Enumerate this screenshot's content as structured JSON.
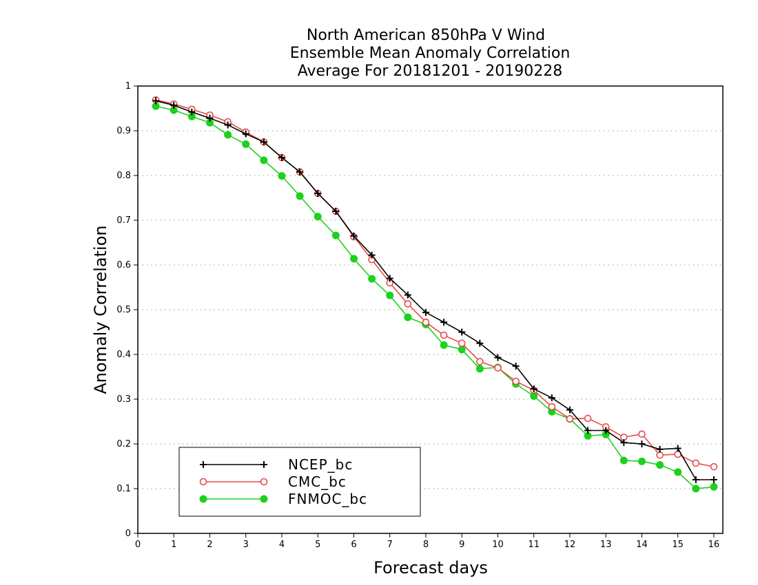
{
  "chart_data": {
    "type": "line",
    "title": [
      "North American 850hPa V Wind",
      "Ensemble Mean Anomaly Correlation",
      "Average For 20181201 - 20190228"
    ],
    "xlabel": "Forecast days",
    "ylabel": "Anomaly Correlation",
    "xlim": [
      0,
      16.25
    ],
    "ylim": [
      0,
      1
    ],
    "xticks": [
      0,
      1,
      2,
      3,
      4,
      5,
      6,
      7,
      8,
      9,
      10,
      11,
      12,
      13,
      14,
      15,
      16
    ],
    "xtick_labels": [
      "0",
      "1",
      "2",
      "3",
      "4",
      "5",
      "6",
      "7",
      "8",
      "9",
      "10",
      "11",
      "12",
      "13",
      "14",
      "15",
      "16"
    ],
    "yticks": [
      0,
      0.1,
      0.2,
      0.3,
      0.4,
      0.5,
      0.6,
      0.7,
      0.8,
      0.9,
      1
    ],
    "ytick_labels": [
      "0",
      "0.1",
      "0.2",
      "0.3",
      "0.4",
      "0.5",
      "0.6",
      "0.7",
      "0.8",
      "0.9",
      "1"
    ],
    "grid": "horizontal-dotted",
    "legend_position": "bottom-left",
    "x": [
      0.5,
      1,
      1.5,
      2,
      2.5,
      3,
      3.5,
      4,
      4.5,
      5,
      5.5,
      6,
      6.5,
      7,
      7.5,
      8,
      8.5,
      9,
      9.5,
      10,
      10.5,
      11,
      11.5,
      12,
      12.5,
      13,
      13.5,
      14,
      14.5,
      15,
      15.5,
      16
    ],
    "series": [
      {
        "name": "NCEP_bc",
        "color": "#000000",
        "marker": "plus",
        "values": [
          0.967,
          0.957,
          0.942,
          0.928,
          0.913,
          0.893,
          0.875,
          0.84,
          0.808,
          0.76,
          0.72,
          0.665,
          0.622,
          0.57,
          0.533,
          0.494,
          0.472,
          0.45,
          0.425,
          0.393,
          0.374,
          0.323,
          0.303,
          0.276,
          0.23,
          0.23,
          0.203,
          0.2,
          0.188,
          0.19,
          0.12,
          0.12
        ]
      },
      {
        "name": "CMC_bc",
        "color": "#e84a4a",
        "marker": "open-circle",
        "values": [
          0.969,
          0.96,
          0.948,
          0.935,
          0.92,
          0.897,
          0.875,
          0.84,
          0.808,
          0.76,
          0.72,
          0.663,
          0.612,
          0.56,
          0.513,
          0.472,
          0.443,
          0.425,
          0.384,
          0.37,
          0.34,
          0.32,
          0.283,
          0.256,
          0.257,
          0.238,
          0.215,
          0.222,
          0.175,
          0.177,
          0.157,
          0.149
        ]
      },
      {
        "name": "FNMOC_bc",
        "color": "#1dd11d",
        "marker": "filled-circle",
        "values": [
          0.955,
          0.946,
          0.932,
          0.918,
          0.891,
          0.87,
          0.834,
          0.799,
          0.754,
          0.708,
          0.666,
          0.614,
          0.569,
          0.532,
          0.483,
          0.467,
          0.421,
          0.411,
          0.368,
          0.371,
          0.334,
          0.307,
          0.272,
          0.256,
          0.218,
          0.221,
          0.163,
          0.161,
          0.153,
          0.137,
          0.1,
          0.104
        ]
      }
    ]
  }
}
